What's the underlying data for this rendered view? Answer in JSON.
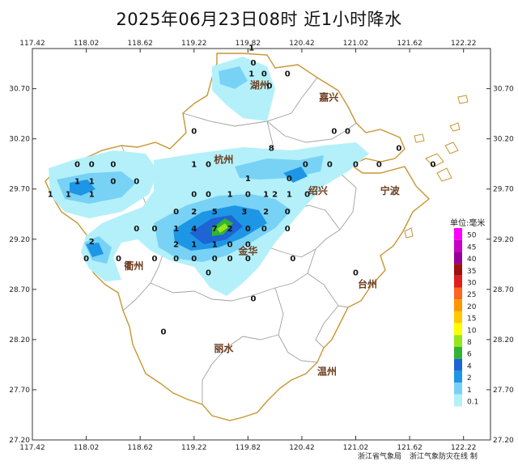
{
  "title": "2025年06月23日08时  近1小时降水",
  "x_ticks": [
    "117.42",
    "118.02",
    "118.62",
    "119.22",
    "119.82",
    "120.42",
    "121.02",
    "121.62",
    "122.22"
  ],
  "y_ticks": [
    "30.70",
    "30.20",
    "29.70",
    "29.20",
    "28.70",
    "28.20",
    "27.70",
    "27.20"
  ],
  "cities": [
    {
      "name": "湖州",
      "lon": 119.95,
      "lat": 30.7
    },
    {
      "name": "嘉兴",
      "lon": 120.72,
      "lat": 30.58
    },
    {
      "name": "杭州",
      "lon": 119.55,
      "lat": 29.96
    },
    {
      "name": "绍兴",
      "lon": 120.6,
      "lat": 29.65
    },
    {
      "name": "宁波",
      "lon": 121.4,
      "lat": 29.65
    },
    {
      "name": "金华",
      "lon": 119.82,
      "lat": 29.05
    },
    {
      "name": "衢州",
      "lon": 118.55,
      "lat": 28.9
    },
    {
      "name": "台州",
      "lon": 121.15,
      "lat": 28.72
    },
    {
      "name": "丽水",
      "lon": 119.55,
      "lat": 28.08
    },
    {
      "name": "温州",
      "lon": 120.7,
      "lat": 27.85
    }
  ],
  "stations": [
    {
      "v": "1",
      "lon": 119.86,
      "lat": 31.08
    },
    {
      "v": "0",
      "lon": 119.88,
      "lat": 30.93
    },
    {
      "v": "1",
      "lon": 119.86,
      "lat": 30.82
    },
    {
      "v": "0",
      "lon": 120.0,
      "lat": 30.82
    },
    {
      "v": "0",
      "lon": 120.26,
      "lat": 30.82
    },
    {
      "v": "0",
      "lon": 120.06,
      "lat": 30.7
    },
    {
      "v": "0",
      "lon": 119.22,
      "lat": 30.25
    },
    {
      "v": "8",
      "lon": 120.08,
      "lat": 30.08
    },
    {
      "v": "0",
      "lon": 120.78,
      "lat": 30.25
    },
    {
      "v": "0",
      "lon": 120.93,
      "lat": 30.25
    },
    {
      "v": "0",
      "lon": 121.5,
      "lat": 30.08
    },
    {
      "v": "0",
      "lon": 117.92,
      "lat": 29.92
    },
    {
      "v": "0",
      "lon": 118.08,
      "lat": 29.92
    },
    {
      "v": "0",
      "lon": 118.32,
      "lat": 29.92
    },
    {
      "v": "1",
      "lon": 119.22,
      "lat": 29.92
    },
    {
      "v": "0",
      "lon": 119.38,
      "lat": 29.92
    },
    {
      "v": "0",
      "lon": 120.46,
      "lat": 29.92
    },
    {
      "v": "0",
      "lon": 120.73,
      "lat": 29.92
    },
    {
      "v": "0",
      "lon": 121.02,
      "lat": 29.92
    },
    {
      "v": "0",
      "lon": 121.28,
      "lat": 29.92
    },
    {
      "v": "0",
      "lon": 121.88,
      "lat": 29.92
    },
    {
      "v": "1",
      "lon": 117.92,
      "lat": 29.75
    },
    {
      "v": "1",
      "lon": 118.08,
      "lat": 29.75
    },
    {
      "v": "0",
      "lon": 118.32,
      "lat": 29.75
    },
    {
      "v": "0",
      "lon": 118.58,
      "lat": 29.75
    },
    {
      "v": "1",
      "lon": 119.82,
      "lat": 29.78
    },
    {
      "v": "0",
      "lon": 120.28,
      "lat": 29.78
    },
    {
      "v": "1",
      "lon": 117.62,
      "lat": 29.62
    },
    {
      "v": "1",
      "lon": 117.82,
      "lat": 29.62
    },
    {
      "v": "1",
      "lon": 118.08,
      "lat": 29.62
    },
    {
      "v": "0",
      "lon": 119.22,
      "lat": 29.62
    },
    {
      "v": "0",
      "lon": 119.38,
      "lat": 29.62
    },
    {
      "v": "1",
      "lon": 119.62,
      "lat": 29.62
    },
    {
      "v": "0",
      "lon": 119.82,
      "lat": 29.62
    },
    {
      "v": "1",
      "lon": 120.02,
      "lat": 29.62
    },
    {
      "v": "2",
      "lon": 120.12,
      "lat": 29.62
    },
    {
      "v": "1",
      "lon": 120.28,
      "lat": 29.62
    },
    {
      "v": "0",
      "lon": 120.48,
      "lat": 29.62
    },
    {
      "v": "0",
      "lon": 119.02,
      "lat": 29.45
    },
    {
      "v": "2",
      "lon": 119.22,
      "lat": 29.45
    },
    {
      "v": "5",
      "lon": 119.45,
      "lat": 29.45
    },
    {
      "v": "3",
      "lon": 119.78,
      "lat": 29.45
    },
    {
      "v": "2",
      "lon": 120.02,
      "lat": 29.45
    },
    {
      "v": "0",
      "lon": 120.26,
      "lat": 29.45
    },
    {
      "v": "0",
      "lon": 118.58,
      "lat": 29.28
    },
    {
      "v": "0",
      "lon": 118.78,
      "lat": 29.28
    },
    {
      "v": "1",
      "lon": 119.02,
      "lat": 29.28
    },
    {
      "v": "4",
      "lon": 119.22,
      "lat": 29.28
    },
    {
      "v": "7",
      "lon": 119.45,
      "lat": 29.28
    },
    {
      "v": "2",
      "lon": 119.62,
      "lat": 29.28
    },
    {
      "v": "0",
      "lon": 119.82,
      "lat": 29.28
    },
    {
      "v": "0",
      "lon": 120.0,
      "lat": 29.28
    },
    {
      "v": "0",
      "lon": 120.26,
      "lat": 29.28
    },
    {
      "v": "2",
      "lon": 118.08,
      "lat": 29.15
    },
    {
      "v": "2",
      "lon": 119.02,
      "lat": 29.12
    },
    {
      "v": "1",
      "lon": 119.22,
      "lat": 29.12
    },
    {
      "v": "1",
      "lon": 119.45,
      "lat": 29.12
    },
    {
      "v": "0",
      "lon": 119.62,
      "lat": 29.12
    },
    {
      "v": "0",
      "lon": 119.82,
      "lat": 29.12
    },
    {
      "v": "0",
      "lon": 118.02,
      "lat": 28.98
    },
    {
      "v": "0",
      "lon": 118.38,
      "lat": 28.98
    },
    {
      "v": "0",
      "lon": 118.78,
      "lat": 28.98
    },
    {
      "v": "0",
      "lon": 119.02,
      "lat": 28.98
    },
    {
      "v": "0",
      "lon": 119.22,
      "lat": 28.98
    },
    {
      "v": "0",
      "lon": 119.45,
      "lat": 28.98
    },
    {
      "v": "0",
      "lon": 119.62,
      "lat": 28.98
    },
    {
      "v": "0",
      "lon": 119.82,
      "lat": 28.98
    },
    {
      "v": "0",
      "lon": 120.32,
      "lat": 28.98
    },
    {
      "v": "0",
      "lon": 119.38,
      "lat": 28.84
    },
    {
      "v": "0",
      "lon": 121.02,
      "lat": 28.84
    },
    {
      "v": "0",
      "lon": 119.88,
      "lat": 28.58
    },
    {
      "v": "0",
      "lon": 118.88,
      "lat": 28.25
    }
  ],
  "legend": {
    "title": "单位:毫米",
    "levels": [
      {
        "label": "50",
        "color": "#ff00ff"
      },
      {
        "label": "45",
        "color": "#c800c8"
      },
      {
        "label": "40",
        "color": "#960096"
      },
      {
        "label": "35",
        "color": "#a01010"
      },
      {
        "label": "30",
        "color": "#e01e1e"
      },
      {
        "label": "25",
        "color": "#ff6420"
      },
      {
        "label": "20",
        "color": "#ff9600"
      },
      {
        "label": "15",
        "color": "#ffc800"
      },
      {
        "label": "10",
        "color": "#ffff00"
      },
      {
        "label": "8",
        "color": "#96e61e"
      },
      {
        "label": "6",
        "color": "#32b432"
      },
      {
        "label": "4",
        "color": "#1e64d2"
      },
      {
        "label": "2",
        "color": "#1e96e6"
      },
      {
        "label": "1",
        "color": "#78d2f5"
      },
      {
        "label": "0.1",
        "color": "#b4f0fa"
      }
    ]
  },
  "credits": [
    "浙江省气象局",
    "浙江气象防灾在线 制"
  ],
  "colors": {
    "province_border": "#c89632",
    "city_border": "#a0a0a0",
    "frame": "#333333"
  }
}
